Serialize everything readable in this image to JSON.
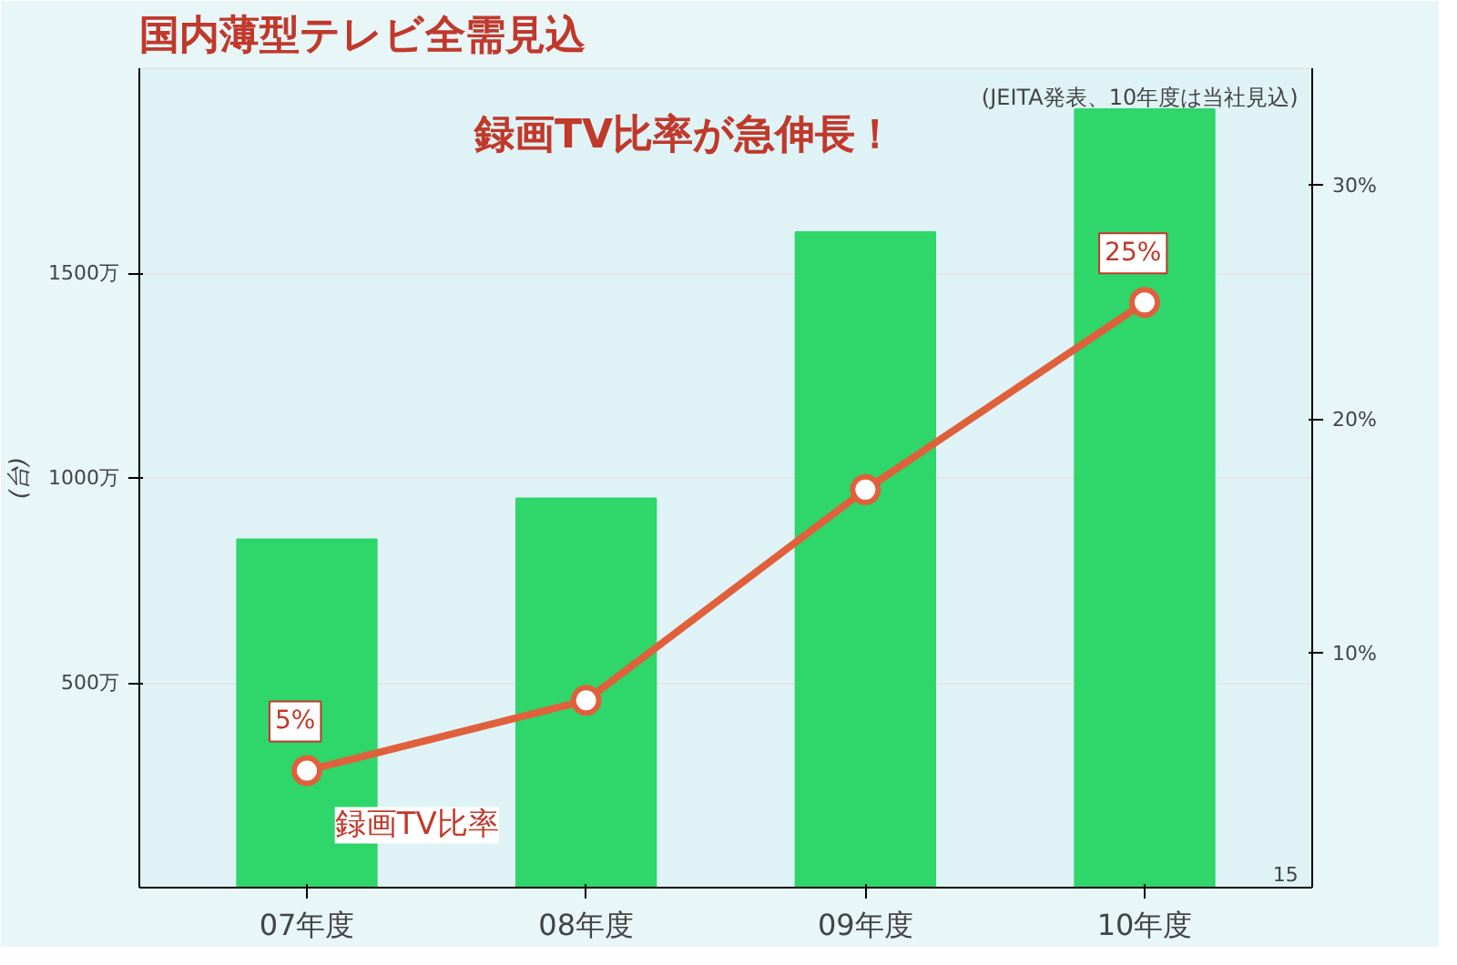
{
  "chart_data": {
    "type": "bar",
    "title": "国内薄型テレビ全需見込",
    "ylabel": "(台)",
    "categories": [
      "07年度",
      "08年度",
      "09年度",
      "10年度"
    ],
    "series": [
      {
        "color": "#2fd66a",
        "values": [
          850,
          950,
          1600,
          1900
        ]
      },
      {
        "type": "line",
        "name": "録画TV比率",
        "color": "#e0603c",
        "axis": "y2",
        "marker": "circle",
        "values": [
          5,
          8,
          17,
          25
        ],
        "value_labels": [
          "5%",
          null,
          null,
          "25%"
        ]
      }
    ],
    "ylim": [
      0,
      2000
    ],
    "yticks": [
      {
        "value": 500,
        "label": "500万"
      },
      {
        "value": 1000,
        "label": "1000万"
      },
      {
        "value": 1500,
        "label": "1500万"
      }
    ],
    "y2lim": [
      0,
      35
    ],
    "y2ticks": [
      {
        "value": 10,
        "label": "10%"
      },
      {
        "value": 20,
        "label": "20%"
      },
      {
        "value": 30,
        "label": "30%"
      }
    ],
    "grid": "y",
    "annotations": [
      "録画TV比率が急伸長！",
      "(JEITA発表、10年度は当社見込)",
      "15"
    ]
  }
}
